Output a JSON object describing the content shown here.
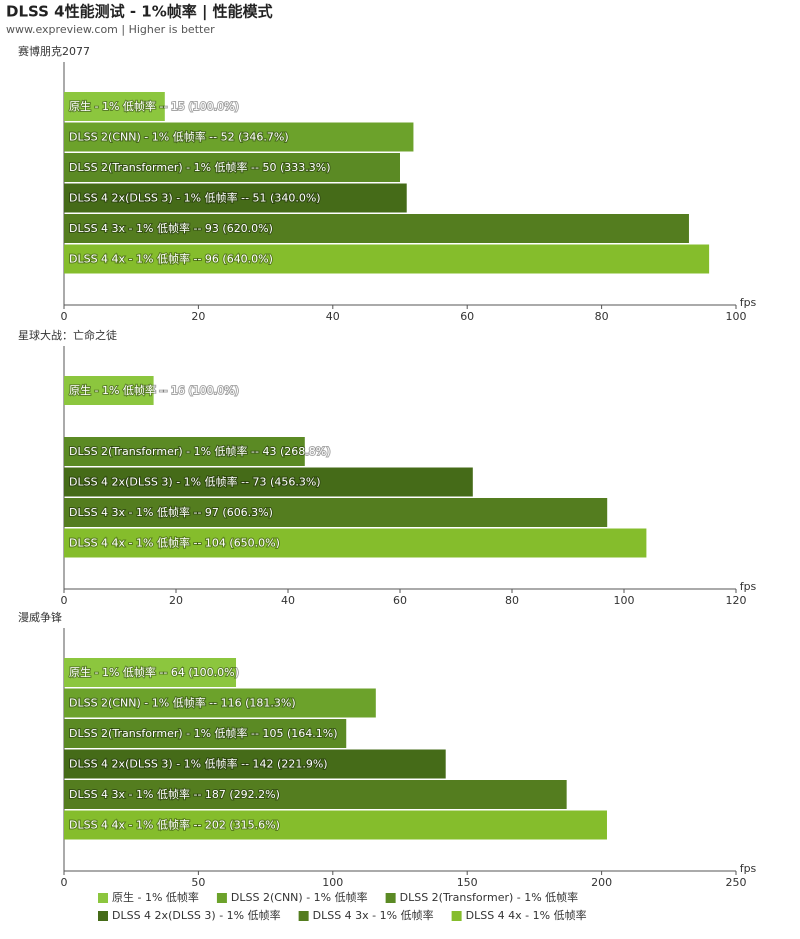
{
  "title": "DLSS 4性能测试 - 1%帧率 | 性能模式",
  "subtitle": "www.expreview.com | Higher is better",
  "legend": [
    {
      "name": "原生 - 1% 低帧率",
      "color": "#8cc63e"
    },
    {
      "name": "DLSS 2(CNN) - 1% 低帧率",
      "color": "#6ca22b"
    },
    {
      "name": "DLSS 2(Transformer) - 1% 低帧率",
      "color": "#5b8a24"
    },
    {
      "name": "DLSS 4 2x(DLSS 3) - 1% 低帧率",
      "color": "#456b18"
    },
    {
      "name": "DLSS 4 3x - 1% 低帧率",
      "color": "#547d1f"
    },
    {
      "name": "DLSS 4 4x - 1% 低帧率",
      "color": "#85bd2c"
    }
  ],
  "chart_data": [
    {
      "type": "bar",
      "title": "赛博朋克2077",
      "x_label": "fps",
      "values": [
        15,
        52,
        50,
        51,
        93,
        96
      ],
      "value_labels": [
        "原生 - 1% 低帧率 -- 15 (100.0%)",
        "DLSS 2(CNN) - 1% 低帧率 -- 52 (346.7%)",
        "DLSS 2(Transformer) - 1% 低帧率 -- 50 (333.3%)",
        "DLSS 4 2x(DLSS 3) - 1% 低帧率 -- 51 (340.0%)",
        "DLSS 4 3x - 1% 低帧率 -- 93 (620.0%)",
        "DLSS 4 4x - 1% 低帧率 -- 96 (640.0%)"
      ],
      "xlim": [
        0,
        100
      ],
      "xticks": [
        0,
        20,
        40,
        60,
        80,
        100
      ]
    },
    {
      "type": "bar",
      "title": "星球大战：亡命之徒",
      "x_label": "fps",
      "values": [
        16,
        null,
        43,
        73,
        97,
        104
      ],
      "value_labels": [
        "原生 - 1% 低帧率 -- 16 (100.0%)",
        null,
        "DLSS 2(Transformer) - 1% 低帧率 -- 43 (268.8%)",
        "DLSS 4 2x(DLSS 3) - 1% 低帧率 -- 73 (456.3%)",
        "DLSS 4 3x - 1% 低帧率 -- 97 (606.3%)",
        "DLSS 4 4x - 1% 低帧率 -- 104 (650.0%)"
      ],
      "xlim": [
        0,
        120
      ],
      "xticks": [
        0,
        20,
        40,
        60,
        80,
        100,
        120
      ]
    },
    {
      "type": "bar",
      "title": "漫威争锋",
      "x_label": "fps",
      "values": [
        64,
        116,
        105,
        142,
        187,
        202
      ],
      "value_labels": [
        "原生 - 1% 低帧率 -- 64 (100.0%)",
        "DLSS 2(CNN) - 1% 低帧率 -- 116 (181.3%)",
        "DLSS 2(Transformer) - 1% 低帧率 -- 105 (164.1%)",
        "DLSS 4 2x(DLSS 3) - 1% 低帧率 -- 142 (221.9%)",
        "DLSS 4 3x - 1% 低帧率 -- 187 (292.2%)",
        "DLSS 4 4x - 1% 低帧率 -- 202 (315.6%)"
      ],
      "xlim": [
        0,
        250
      ],
      "xticks": [
        0,
        50,
        100,
        150,
        200,
        250
      ]
    }
  ]
}
